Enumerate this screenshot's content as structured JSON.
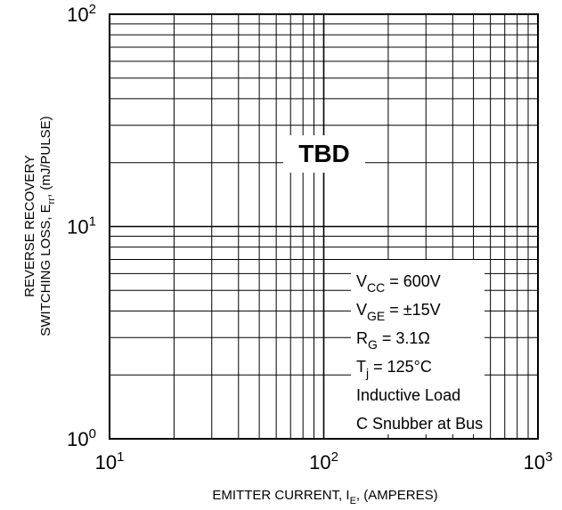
{
  "chart_data": {
    "type": "line",
    "series": [],
    "xscale": "log",
    "yscale": "log",
    "xlim": [
      10,
      1000
    ],
    "ylim": [
      1,
      100
    ],
    "grid": true,
    "x_ticks": [
      {
        "value": 10,
        "base": "10",
        "exp": "1"
      },
      {
        "value": 100,
        "base": "10",
        "exp": "2"
      },
      {
        "value": 1000,
        "base": "10",
        "exp": "3"
      }
    ],
    "y_ticks": [
      {
        "value": 1,
        "base": "10",
        "exp": "0"
      },
      {
        "value": 10,
        "base": "10",
        "exp": "1"
      },
      {
        "value": 100,
        "base": "10",
        "exp": "2"
      }
    ],
    "xlabel": {
      "pre": "EMITTER CURRENT, I",
      "sub": "E",
      "post": ", (AMPERES)"
    },
    "ylabel": {
      "line1": "REVERSE RECOVERY",
      "line2_pre": "SWITCHING LOSS, E",
      "line2_sub": "rr",
      "line2_post": ", (mJ/PULSE)"
    },
    "placeholder": "TBD",
    "conditions": [
      {
        "main": "V",
        "sub": "CC",
        "rest": " = 600V"
      },
      {
        "main": "V",
        "sub": "GE",
        "rest": " = ±15V"
      },
      {
        "main": "R",
        "sub": "G",
        "rest": " = 3.1Ω"
      },
      {
        "main": "T",
        "sub": "j",
        "rest": " = 125°C"
      },
      {
        "main": "Inductive Load",
        "sub": "",
        "rest": ""
      },
      {
        "main": "C Snubber at Bus",
        "sub": "",
        "rest": ""
      }
    ]
  }
}
